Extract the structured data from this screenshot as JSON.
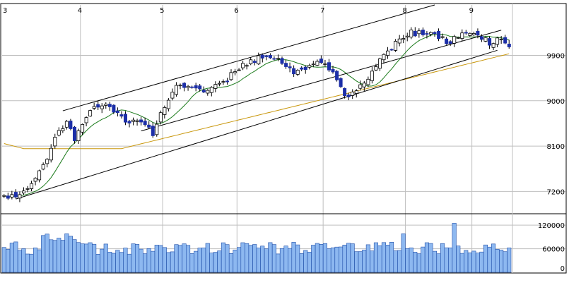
{
  "colors": {
    "frame": "#000000",
    "grid": "#bfbfbf",
    "candle_up_body": "#ffffff",
    "candle_down_body": "#1c2fa8",
    "candle_outline": "#000000",
    "ma_short": "#1a7a1a",
    "ma_long": "#c8960a",
    "channel": "#000000",
    "volume_fill": "#8db8f0",
    "volume_edge": "#1e4ea8"
  },
  "chart_data": {
    "type": "candlestick",
    "month_labels": [
      "3",
      "4",
      "5",
      "6",
      "7",
      "8",
      "9"
    ],
    "price_ticks": [
      "9900",
      "9000",
      "8100",
      "7200"
    ],
    "volume_ticks": [
      "120000",
      "60000",
      "0"
    ],
    "price_range": [
      6800,
      10900
    ],
    "volume_range": [
      0,
      140000
    ],
    "grid": true,
    "candles": [],
    "volume": [],
    "ma_short": [],
    "ma_long": [],
    "channel_lines": []
  }
}
